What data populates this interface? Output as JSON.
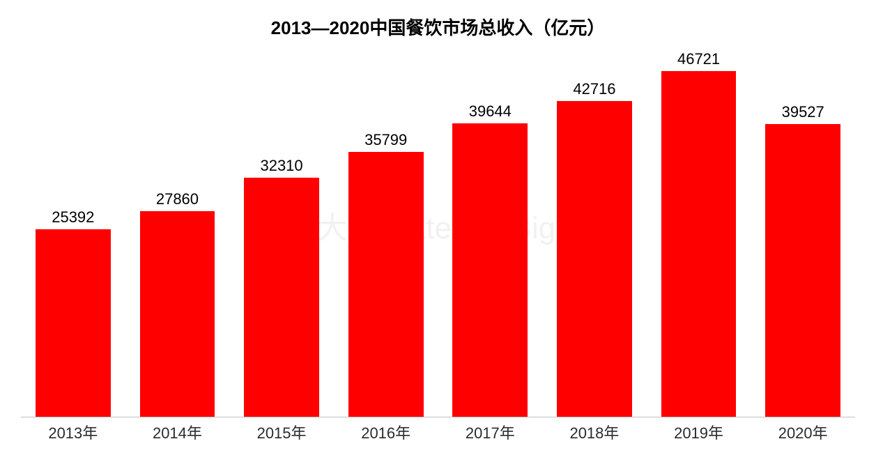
{
  "chart": {
    "type": "bar",
    "title": "2013—2020中国餐饮市场总收入（亿元）",
    "title_fontsize": 26,
    "title_color": "#000000",
    "title_weight": "bold",
    "categories": [
      "2013年",
      "2014年",
      "2015年",
      "2016年",
      "2017年",
      "2018年",
      "2019年",
      "2020年"
    ],
    "values": [
      25392,
      27860,
      32310,
      35799,
      39644,
      42716,
      46721,
      39527
    ],
    "bar_color": "#ff0000",
    "value_label_color": "#000000",
    "value_label_fontsize": 22,
    "x_label_color": "#2b2b2b",
    "x_label_fontsize": 22,
    "background_color": "#ffffff",
    "baseline_color": "#bfbfbf",
    "ylim": [
      0,
      50000
    ],
    "bar_width_pct": 72,
    "watermark": {
      "text": "餐饮大典  Catering BigData",
      "color": "rgba(180,180,180,0.18)",
      "fontsize": 44
    }
  }
}
